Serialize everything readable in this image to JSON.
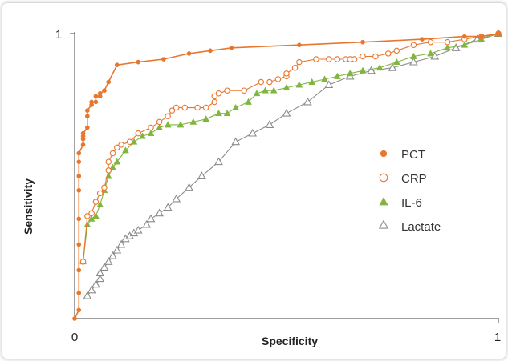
{
  "chart_data": {
    "type": "scatter",
    "title": "",
    "xlabel": "Specificity",
    "ylabel": "Sensitivity",
    "xlim": [
      0,
      1
    ],
    "ylim": [
      0,
      1
    ],
    "x_ticks": [
      "0",
      "1"
    ],
    "y_ticks": [
      "1"
    ],
    "grid": false,
    "legend_position": "right",
    "series": [
      {
        "name": "PCT",
        "color": "#E8772E",
        "marker": "filled-circle",
        "line": true,
        "x": [
          0.0,
          0.01,
          0.01,
          0.01,
          0.01,
          0.01,
          0.01,
          0.01,
          0.01,
          0.01,
          0.02,
          0.02,
          0.02,
          0.02,
          0.03,
          0.03,
          0.03,
          0.04,
          0.04,
          0.05,
          0.05,
          0.06,
          0.06,
          0.07,
          0.08,
          0.1,
          0.15,
          0.21,
          0.27,
          0.32,
          0.37,
          0.53,
          0.68,
          0.82,
          0.92,
          0.96,
          1.0
        ],
        "y": [
          0.0,
          0.03,
          0.09,
          0.17,
          0.26,
          0.35,
          0.45,
          0.5,
          0.55,
          0.58,
          0.61,
          0.63,
          0.64,
          0.65,
          0.67,
          0.71,
          0.73,
          0.75,
          0.76,
          0.76,
          0.78,
          0.78,
          0.79,
          0.8,
          0.83,
          0.89,
          0.9,
          0.91,
          0.93,
          0.94,
          0.95,
          0.96,
          0.97,
          0.98,
          0.99,
          0.99,
          1.0
        ]
      },
      {
        "name": "CRP",
        "color": "#E8772E",
        "marker": "open-circle",
        "line": true,
        "x": [
          0.02,
          0.03,
          0.04,
          0.05,
          0.06,
          0.07,
          0.08,
          0.08,
          0.09,
          0.1,
          0.11,
          0.13,
          0.15,
          0.18,
          0.2,
          0.22,
          0.23,
          0.24,
          0.26,
          0.29,
          0.31,
          0.33,
          0.33,
          0.34,
          0.36,
          0.4,
          0.44,
          0.46,
          0.48,
          0.5,
          0.5,
          0.52,
          0.53,
          0.57,
          0.6,
          0.62,
          0.64,
          0.65,
          0.66,
          0.68,
          0.71,
          0.74,
          0.76,
          0.8,
          0.84,
          0.88,
          0.92,
          0.96,
          1.0
        ],
        "y": [
          0.2,
          0.36,
          0.37,
          0.41,
          0.44,
          0.46,
          0.52,
          0.55,
          0.58,
          0.6,
          0.61,
          0.62,
          0.65,
          0.67,
          0.69,
          0.71,
          0.73,
          0.74,
          0.74,
          0.74,
          0.74,
          0.76,
          0.78,
          0.79,
          0.8,
          0.8,
          0.83,
          0.83,
          0.84,
          0.85,
          0.86,
          0.88,
          0.9,
          0.91,
          0.91,
          0.91,
          0.91,
          0.91,
          0.91,
          0.92,
          0.92,
          0.93,
          0.94,
          0.96,
          0.97,
          0.97,
          0.98,
          0.99,
          1.0
        ]
      },
      {
        "name": "IL-6",
        "color": "#82B53F",
        "marker": "filled-triangle",
        "line": true,
        "x": [
          0.02,
          0.03,
          0.04,
          0.05,
          0.06,
          0.07,
          0.08,
          0.09,
          0.1,
          0.12,
          0.14,
          0.16,
          0.18,
          0.2,
          0.22,
          0.25,
          0.28,
          0.31,
          0.34,
          0.36,
          0.38,
          0.41,
          0.43,
          0.45,
          0.47,
          0.5,
          0.53,
          0.56,
          0.59,
          0.62,
          0.65,
          0.68,
          0.72,
          0.76,
          0.8,
          0.84,
          0.88,
          0.92,
          0.96,
          1.0
        ],
        "y": [
          0.2,
          0.33,
          0.35,
          0.36,
          0.4,
          0.45,
          0.5,
          0.53,
          0.55,
          0.59,
          0.62,
          0.64,
          0.65,
          0.67,
          0.68,
          0.68,
          0.69,
          0.7,
          0.72,
          0.72,
          0.74,
          0.76,
          0.79,
          0.8,
          0.8,
          0.81,
          0.82,
          0.83,
          0.84,
          0.85,
          0.86,
          0.87,
          0.88,
          0.9,
          0.92,
          0.93,
          0.95,
          0.96,
          0.98,
          1.0
        ]
      },
      {
        "name": "Lactate",
        "color": "#8C8C8C",
        "marker": "open-triangle",
        "line": true,
        "x": [
          0.03,
          0.04,
          0.05,
          0.06,
          0.06,
          0.07,
          0.08,
          0.09,
          0.1,
          0.11,
          0.12,
          0.13,
          0.14,
          0.15,
          0.17,
          0.18,
          0.2,
          0.22,
          0.24,
          0.27,
          0.3,
          0.34,
          0.38,
          0.42,
          0.46,
          0.5,
          0.55,
          0.6,
          0.65,
          0.7,
          0.75,
          0.8,
          0.85,
          0.9,
          0.95,
          1.0
        ],
        "y": [
          0.08,
          0.1,
          0.12,
          0.14,
          0.16,
          0.18,
          0.2,
          0.22,
          0.24,
          0.26,
          0.28,
          0.29,
          0.3,
          0.31,
          0.33,
          0.35,
          0.37,
          0.39,
          0.42,
          0.46,
          0.5,
          0.55,
          0.62,
          0.65,
          0.68,
          0.72,
          0.76,
          0.82,
          0.85,
          0.87,
          0.88,
          0.9,
          0.92,
          0.95,
          0.98,
          1.0
        ]
      }
    ]
  }
}
